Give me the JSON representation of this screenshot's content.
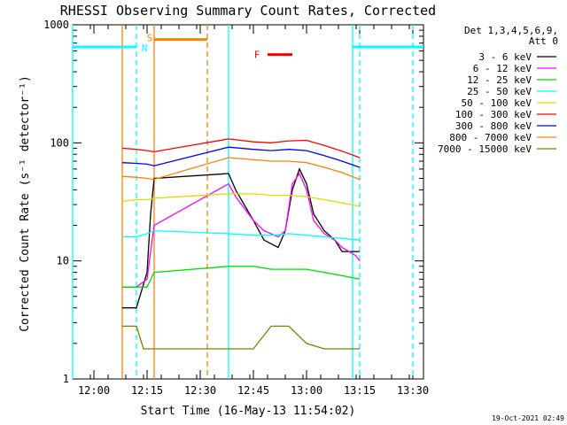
{
  "chart_data": {
    "type": "line",
    "title": "RHESSI Observing Summary Count Rates, Corrected",
    "xlabel": "Start Time (16-May-13 11:54:02)",
    "ylabel": "Corrected Count Rate (s⁻¹ detector⁻¹)",
    "yscale": "log",
    "ylim": [
      1,
      1000
    ],
    "xlim": [
      "11:54",
      "13:33"
    ],
    "x_ticks": [
      "12:00",
      "12:15",
      "12:30",
      "12:45",
      "13:00",
      "13:15",
      "13:30"
    ],
    "y_ticks": [
      "1",
      "10",
      "100",
      "1000"
    ],
    "legend_header": [
      "Det 1,3,4,5,6,9,",
      "Att 0"
    ],
    "legend_position": "right",
    "timestamp": "19-Oct-2021 02:49",
    "flags": [
      {
        "label": "S",
        "color": "#ff8000"
      },
      {
        "label": "N",
        "color": "#00ffff"
      },
      {
        "label": "F",
        "color": "#ff0000"
      }
    ],
    "series": [
      {
        "name": "3 - 6 keV",
        "color": "#000000",
        "x": [
          "12:08",
          "12:12",
          "12:15",
          "12:16",
          "12:17",
          "12:38",
          "12:40",
          "12:45",
          "12:48",
          "12:52",
          "12:54",
          "12:56",
          "12:58",
          "13:00",
          "13:02",
          "13:05",
          "13:08",
          "13:10",
          "13:12",
          "13:14",
          "13:15"
        ],
        "y": [
          4,
          4,
          8,
          25,
          50,
          55,
          40,
          22,
          15,
          13,
          18,
          40,
          60,
          45,
          25,
          18,
          15,
          12,
          12,
          12,
          12
        ]
      },
      {
        "name": "6 - 12 keV",
        "color": "#ff00ff",
        "x": [
          "12:08",
          "12:12",
          "12:15",
          "12:16",
          "12:17",
          "12:38",
          "12:40",
          "12:45",
          "12:48",
          "12:52",
          "12:54",
          "12:56",
          "12:58",
          "13:00",
          "13:02",
          "13:05",
          "13:08",
          "13:10",
          "13:12",
          "13:14",
          "13:15"
        ],
        "y": [
          6,
          6,
          7,
          12,
          20,
          45,
          35,
          22,
          18,
          16,
          18,
          45,
          55,
          40,
          22,
          17,
          15,
          13,
          12,
          11,
          10
        ]
      },
      {
        "name": "12 - 25 keV",
        "color": "#00dd00",
        "x": [
          "12:08",
          "12:12",
          "12:15",
          "12:17",
          "12:38",
          "12:45",
          "12:50",
          "12:55",
          "13:00",
          "13:05",
          "13:10",
          "13:15"
        ],
        "y": [
          6,
          6,
          6,
          8,
          9,
          9,
          8.5,
          8.5,
          8.5,
          8,
          7.5,
          7
        ]
      },
      {
        "name": "25 - 50 keV",
        "color": "#00ffff",
        "x": [
          "12:08",
          "12:12",
          "12:15",
          "12:17",
          "12:38",
          "12:45",
          "12:50",
          "12:55",
          "13:00",
          "13:05",
          "13:10",
          "13:15"
        ],
        "y": [
          16,
          16,
          17,
          18,
          17,
          16.5,
          16.5,
          17,
          16.5,
          16,
          15.5,
          15
        ]
      },
      {
        "name": "50 - 100 keV",
        "color": "#dddd00",
        "x": [
          "12:08",
          "12:12",
          "12:15",
          "12:17",
          "12:38",
          "12:45",
          "12:50",
          "12:55",
          "13:00",
          "13:05",
          "13:10",
          "13:15"
        ],
        "y": [
          32,
          33,
          33,
          34,
          37,
          37,
          36,
          36,
          35,
          33,
          31,
          29
        ]
      },
      {
        "name": "100 - 300 keV",
        "color": "#ff0000",
        "x": [
          "12:08",
          "12:12",
          "12:15",
          "12:17",
          "12:38",
          "12:45",
          "12:50",
          "12:55",
          "13:00",
          "13:05",
          "13:10",
          "13:15"
        ],
        "y": [
          90,
          88,
          86,
          84,
          108,
          102,
          100,
          104,
          105,
          95,
          85,
          75
        ]
      },
      {
        "name": "300 - 800 keV",
        "color": "#0000ff",
        "x": [
          "12:08",
          "12:12",
          "12:15",
          "12:17",
          "12:38",
          "12:45",
          "12:50",
          "12:55",
          "13:00",
          "13:05",
          "13:10",
          "13:15"
        ],
        "y": [
          68,
          67,
          66,
          64,
          92,
          88,
          86,
          88,
          86,
          78,
          70,
          62
        ]
      },
      {
        "name": "800 - 7000 keV",
        "color": "#ff8000",
        "x": [
          "12:08",
          "12:12",
          "12:15",
          "12:17",
          "12:38",
          "12:45",
          "12:50",
          "12:55",
          "13:00",
          "13:05",
          "13:10",
          "13:15"
        ],
        "y": [
          52,
          51,
          50,
          49,
          75,
          72,
          70,
          70,
          68,
          62,
          56,
          49
        ]
      },
      {
        "name": "7000 - 15000 keV",
        "color": "#808000",
        "x": [
          "12:08",
          "12:12",
          "12:14",
          "12:38",
          "12:45",
          "12:50",
          "12:55",
          "13:00",
          "13:05",
          "13:10",
          "13:12",
          "13:15"
        ],
        "y": [
          2.8,
          2.8,
          1.8,
          1.8,
          1.8,
          2.8,
          2.8,
          2.0,
          1.8,
          1.8,
          1.8,
          1.8
        ]
      }
    ],
    "state_bars": [
      {
        "flag": "N",
        "color": "#00ffff",
        "y": 650,
        "ranges": [
          [
            "11:54",
            "12:12"
          ],
          [
            "13:13",
            "13:33"
          ]
        ],
        "weight": 3
      },
      {
        "flag": "S",
        "color": "#ff8000",
        "y": 750,
        "ranges": [
          [
            "12:17",
            "12:32"
          ]
        ],
        "weight": 3
      },
      {
        "flag": "F",
        "color": "#ff0000",
        "y": 560,
        "ranges": [
          [
            "12:49",
            "12:56"
          ]
        ],
        "weight": 3
      }
    ],
    "vlines": [
      {
        "x": "11:54",
        "color": "#00ffff",
        "style": "solid"
      },
      {
        "x": "12:12",
        "color": "#00ffff",
        "style": "dashed"
      },
      {
        "x": "12:08",
        "color": "#ff8000",
        "style": "solid"
      },
      {
        "x": "12:17",
        "color": "#ff8000",
        "style": "solid"
      },
      {
        "x": "12:32",
        "color": "#ff8000",
        "style": "dashed"
      },
      {
        "x": "12:38",
        "color": "#00ffff",
        "style": "solid"
      },
      {
        "x": "13:13",
        "color": "#00ffff",
        "style": "solid"
      },
      {
        "x": "13:15",
        "color": "#00ffff",
        "style": "dashed"
      },
      {
        "x": "13:30",
        "color": "#00ffff",
        "style": "dashed"
      }
    ]
  }
}
